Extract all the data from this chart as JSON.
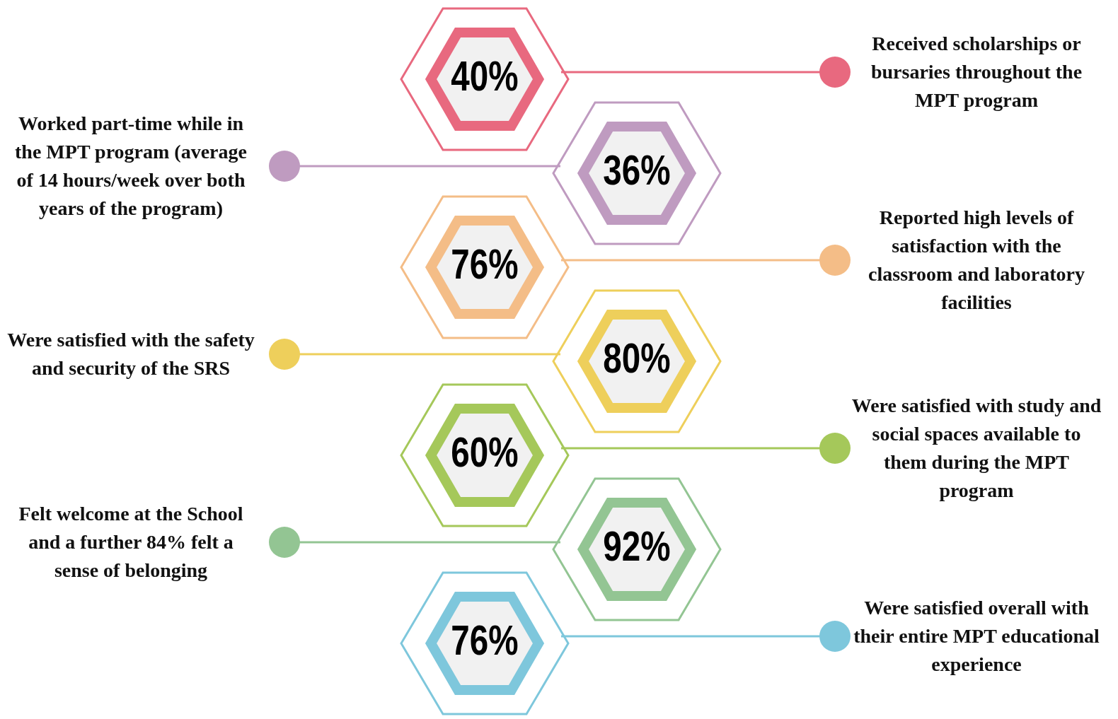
{
  "chart_data": {
    "type": "other",
    "categories": [
      "Received scholarships or bursaries throughout the MPT program",
      "Worked part-time while in the MPT program (average of 14 hours/week over both years of the program)",
      "Reported high levels of satisfaction with the classroom and laboratory facilities",
      "Were satisfied with the safety and security of the SRS",
      "Were satisfied with study and social spaces available to them during the MPT program",
      "Felt welcome at the School and a further 84% felt a sense of belonging",
      "Were satisfied overall with their entire MPT educational experience"
    ],
    "values": [
      40,
      36,
      76,
      80,
      60,
      92,
      76
    ],
    "value_labels": [
      "40%",
      "36%",
      "76%",
      "80%",
      "60%",
      "92%",
      "76%"
    ],
    "colors": [
      "#e8697f",
      "#bf9bc0",
      "#f4bd87",
      "#eecf5b",
      "#a5c85a",
      "#93c593",
      "#7ec7dc"
    ]
  }
}
